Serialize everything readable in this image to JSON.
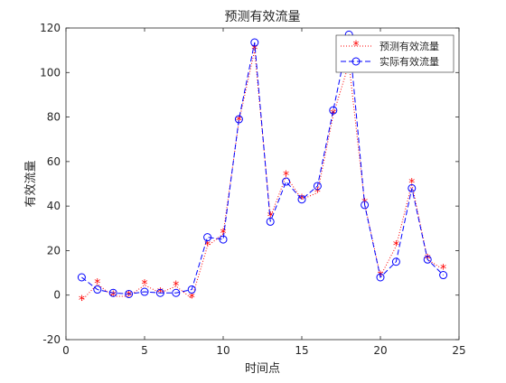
{
  "chart_data": {
    "type": "line",
    "title": "预测有效流量",
    "xlabel": "时间点",
    "ylabel": "有效流量",
    "xlim": [
      0,
      25
    ],
    "ylim": [
      -20,
      120
    ],
    "xticks": [
      0,
      5,
      10,
      15,
      20,
      25
    ],
    "yticks": [
      -20,
      0,
      20,
      40,
      60,
      80,
      100,
      120
    ],
    "grid": false,
    "legend_position": "top-right",
    "x": [
      1,
      2,
      3,
      4,
      5,
      6,
      7,
      8,
      9,
      10,
      11,
      12,
      13,
      14,
      15,
      16,
      17,
      18,
      19,
      20,
      21,
      22,
      23,
      24
    ],
    "series": [
      {
        "name": "预测有效流量",
        "color": "#ff0000",
        "line_style": "dotted",
        "marker": "asterisk",
        "values": [
          -2.5,
          5,
          -0.5,
          -0.5,
          4.5,
          1,
          4,
          -1.5,
          22,
          27.5,
          78,
          110,
          35,
          53.5,
          43,
          46,
          81,
          104,
          41,
          8.5,
          22,
          50,
          16,
          11.5
        ]
      },
      {
        "name": "实际有效流量",
        "color": "#0000ff",
        "line_style": "dashed",
        "marker": "circle",
        "values": [
          8,
          2.5,
          1,
          0.5,
          1.5,
          1,
          1,
          2.5,
          26,
          25,
          79,
          113.5,
          33,
          51,
          43,
          49,
          83,
          117,
          40.5,
          8,
          15,
          48,
          16,
          9
        ]
      }
    ]
  }
}
